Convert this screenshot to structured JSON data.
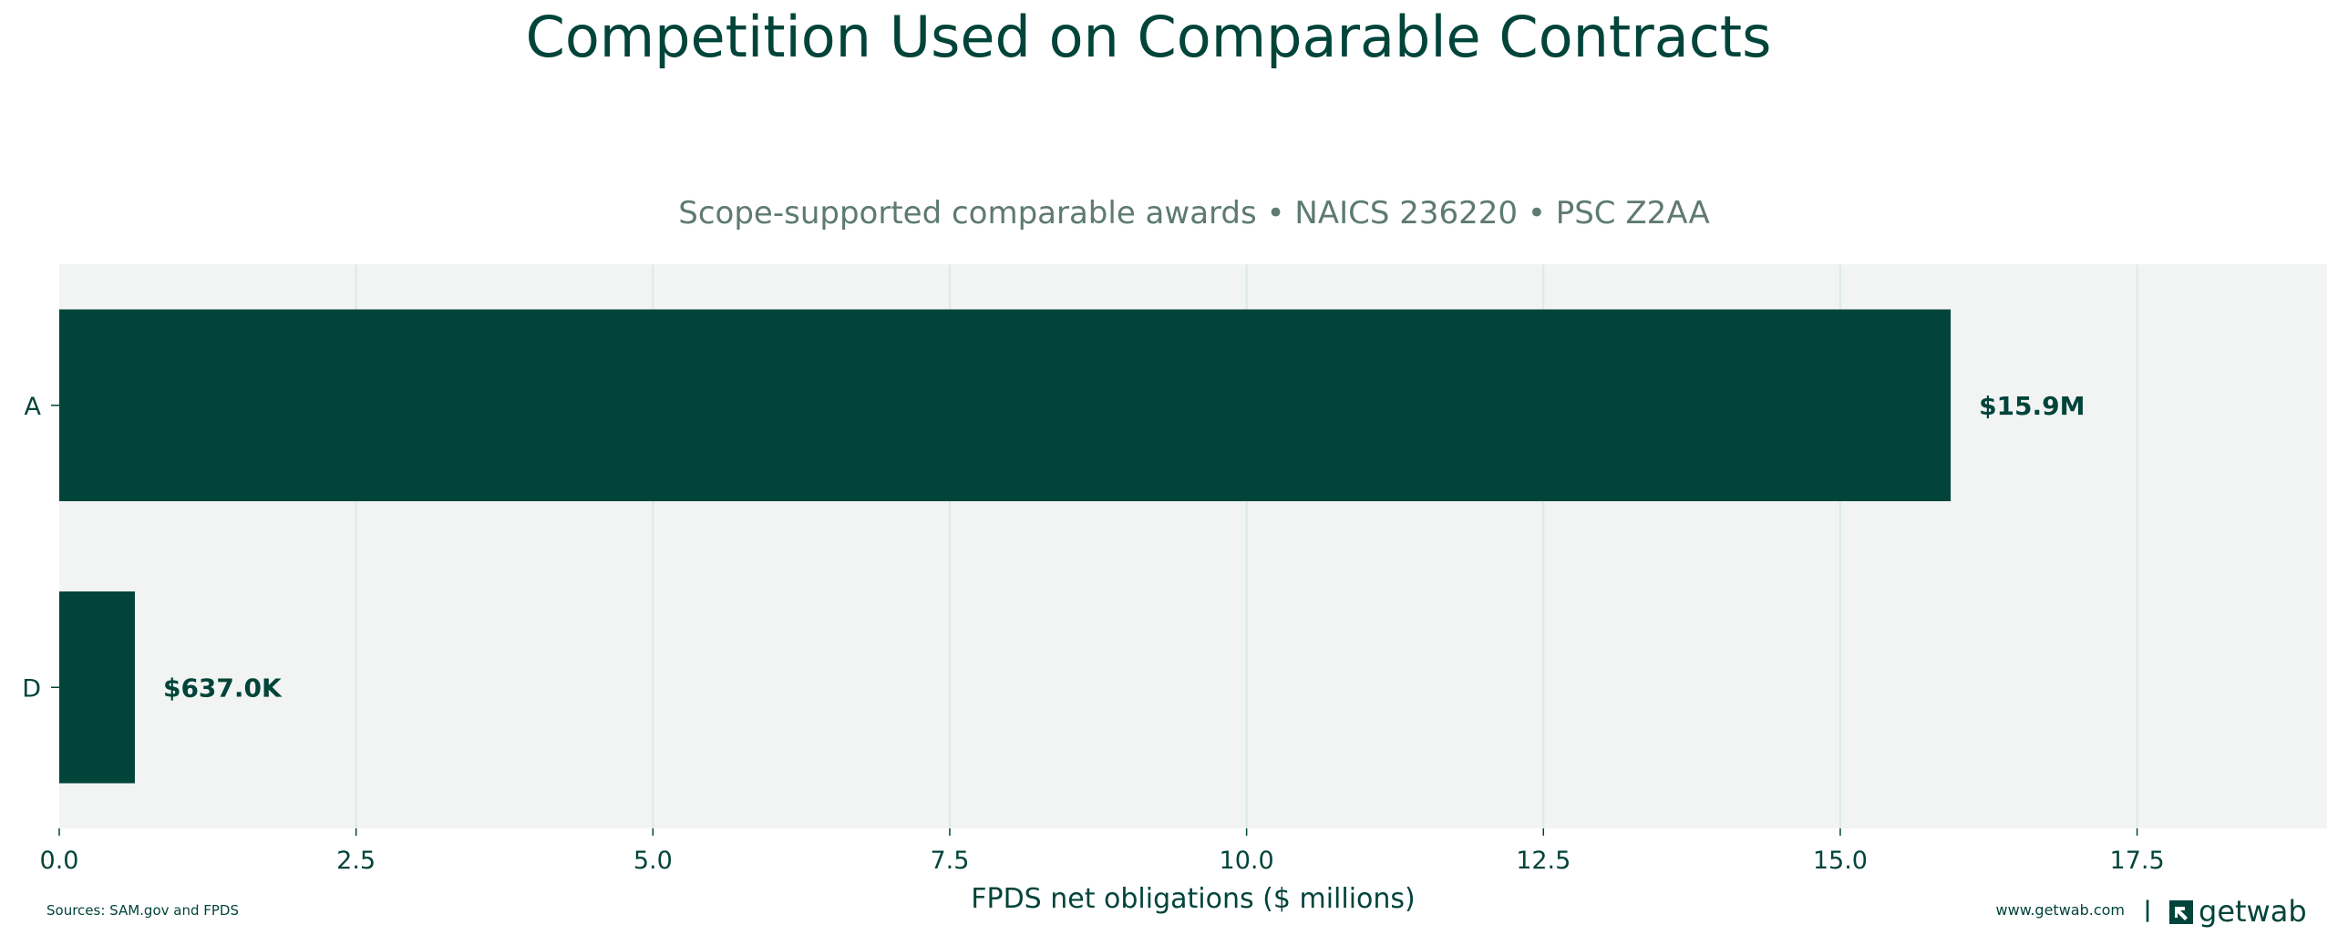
{
  "chart_data": {
    "type": "bar",
    "orientation": "horizontal",
    "title": "Competition Used on Comparable Contracts",
    "subtitle": "Scope-supported comparable awards • NAICS 236220 • PSC Z2AA",
    "xlabel": "FPDS net obligations ($ millions)",
    "ylabel": "",
    "categories": [
      "A",
      "D"
    ],
    "values": [
      15.93,
      0.637
    ],
    "data_labels": [
      "$15.9M",
      "$637.0K"
    ],
    "xlim": [
      0,
      19.1
    ],
    "xticks": [
      0.0,
      2.5,
      5.0,
      7.5,
      10.0,
      12.5,
      15.0,
      17.5
    ],
    "xtick_labels": [
      "0.0",
      "2.5",
      "5.0",
      "7.5",
      "10.0",
      "12.5",
      "15.0",
      "17.5"
    ],
    "grid": "vertical",
    "legend": "none"
  },
  "footer": {
    "sources": "Sources: SAM.gov and FPDS",
    "website": "www.getwab.com",
    "separator": "|",
    "logo_text": "getwab"
  },
  "colors": {
    "bar": "#01443a",
    "text": "#01443a",
    "subtitle": "#5e7a72",
    "plot_background": "#f2f4f3",
    "grid": "#dde9e5"
  }
}
